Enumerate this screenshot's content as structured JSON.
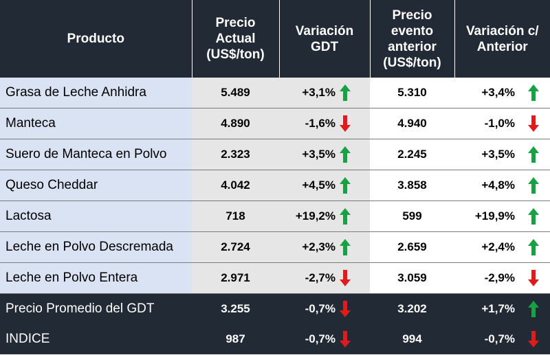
{
  "colors": {
    "header_bg": "#222a35",
    "name_bg": "#dae3f3",
    "current_bg": "#e6e6e6",
    "up": "#18a044",
    "down": "#e01b1b"
  },
  "headers": {
    "product": "Producto",
    "current_price": "Precio Actual (US$/ton)",
    "gdt_change": "Variación GDT",
    "previous_price": "Precio evento anterior (US$/ton)",
    "previous_change": "Variación c/ Anterior"
  },
  "rows": [
    {
      "product": "Grasa de Leche Anhidra",
      "price": "5.489",
      "change": "+3,1%",
      "dir": "up",
      "prev_price": "5.310",
      "prev_change": "+3,4%",
      "prev_dir": "up"
    },
    {
      "product": "Manteca",
      "price": "4.890",
      "change": "-1,6%",
      "dir": "down",
      "prev_price": "4.940",
      "prev_change": "-1,0%",
      "prev_dir": "down"
    },
    {
      "product": "Suero de Manteca en Polvo",
      "price": "2.323",
      "change": "+3,5%",
      "dir": "up",
      "prev_price": "2.245",
      "prev_change": "+3,5%",
      "prev_dir": "up"
    },
    {
      "product": "Queso Cheddar",
      "price": "4.042",
      "change": "+4,5%",
      "dir": "up",
      "prev_price": "3.858",
      "prev_change": "+4,8%",
      "prev_dir": "up"
    },
    {
      "product": "Lactosa",
      "price": "718",
      "change": "+19,2%",
      "dir": "up",
      "prev_price": "599",
      "prev_change": "+19,9%",
      "prev_dir": "up"
    },
    {
      "product": "Leche en Polvo Descremada",
      "price": "2.724",
      "change": "+2,3%",
      "dir": "up",
      "prev_price": "2.659",
      "prev_change": "+2,4%",
      "prev_dir": "up"
    },
    {
      "product": "Leche en Polvo Entera",
      "price": "2.971",
      "change": "-2,7%",
      "dir": "down",
      "prev_price": "3.059",
      "prev_change": "-2,9%",
      "prev_dir": "down"
    }
  ],
  "summary": [
    {
      "product": "Precio Promedio del GDT",
      "price": "3.255",
      "change": "-0,7%",
      "dir": "down",
      "prev_price": "3.202",
      "prev_change": "+1,7%",
      "prev_dir": "up"
    },
    {
      "product": "INDICE",
      "price": "987",
      "change": "-0,7%",
      "dir": "down",
      "prev_price": "994",
      "prev_change": "-0,7%",
      "prev_dir": "down"
    }
  ]
}
